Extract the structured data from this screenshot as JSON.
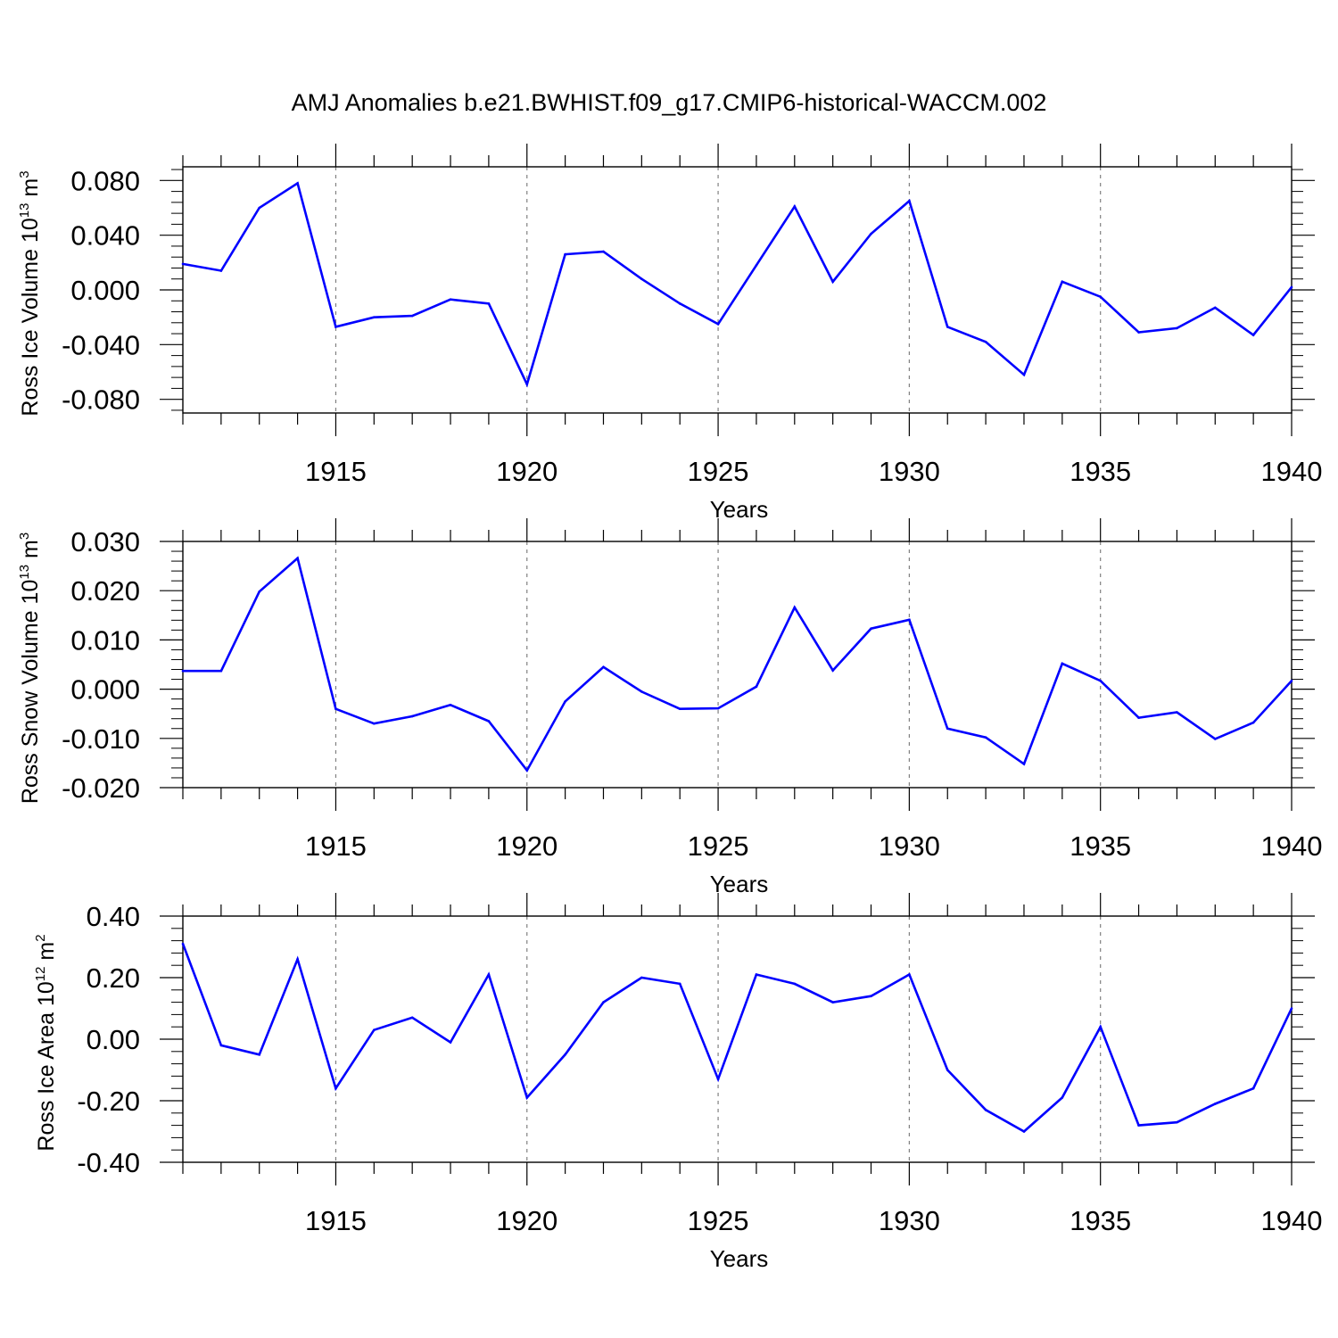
{
  "title": "AMJ Anomalies b.e21.BWHIST.f09_g17.CMIP6-historical-WACCM.002",
  "colors": {
    "line": "#0000ff",
    "axis": "#000000",
    "grid": "#808080"
  },
  "chart_data": [
    {
      "type": "line",
      "ylabel": {
        "text": "Ross Ice Volume 10",
        "exp": "13",
        "unit": " m",
        "unit_exp": "3"
      },
      "xlabel": "Years",
      "xlim": [
        1911,
        1940
      ],
      "ylim": [
        -0.09,
        0.09
      ],
      "grid": "vertical-dashed",
      "x_ticks": [
        1915,
        1920,
        1925,
        1930,
        1935,
        1940
      ],
      "x_tick_labels": [
        "1915",
        "1920",
        "1925",
        "1930",
        "1935",
        "1940"
      ],
      "y_ticks": [
        0.08,
        0.04,
        0.0,
        -0.04,
        -0.08
      ],
      "y_tick_labels": [
        "0.080",
        "0.040",
        "0.000",
        "-0.040",
        "-0.080"
      ],
      "x": [
        1911,
        1912,
        1913,
        1914,
        1915,
        1916,
        1917,
        1918,
        1919,
        1920,
        1921,
        1922,
        1923,
        1924,
        1925,
        1926,
        1927,
        1928,
        1929,
        1930,
        1931,
        1932,
        1933,
        1934,
        1935,
        1936,
        1937,
        1938,
        1939,
        1940
      ],
      "values": [
        0.019,
        0.014,
        0.06,
        0.078,
        -0.027,
        -0.02,
        -0.019,
        -0.007,
        -0.01,
        -0.069,
        0.026,
        0.028,
        0.008,
        -0.01,
        -0.025,
        0.018,
        0.061,
        0.006,
        0.041,
        0.065,
        -0.027,
        -0.038,
        -0.062,
        0.006,
        -0.005,
        -0.031,
        -0.028,
        -0.013,
        -0.033,
        0.002
      ]
    },
    {
      "type": "line",
      "ylabel": {
        "text": "Ross Snow Volume 10",
        "exp": "13",
        "unit": " m",
        "unit_exp": "3"
      },
      "xlabel": "Years",
      "xlim": [
        1911,
        1940
      ],
      "ylim": [
        -0.02,
        0.03
      ],
      "grid": "vertical-dashed",
      "x_ticks": [
        1915,
        1920,
        1925,
        1930,
        1935,
        1940
      ],
      "x_tick_labels": [
        "1915",
        "1920",
        "1925",
        "1930",
        "1935",
        "1940"
      ],
      "y_ticks": [
        0.03,
        0.02,
        0.01,
        0.0,
        -0.01,
        -0.02
      ],
      "y_tick_labels": [
        "0.030",
        "0.020",
        "0.010",
        "0.000",
        "-0.010",
        "-0.020"
      ],
      "x": [
        1911,
        1912,
        1913,
        1914,
        1915,
        1916,
        1917,
        1918,
        1919,
        1920,
        1921,
        1922,
        1923,
        1924,
        1925,
        1926,
        1927,
        1928,
        1929,
        1930,
        1931,
        1932,
        1933,
        1934,
        1935,
        1936,
        1937,
        1938,
        1939,
        1940
      ],
      "values": [
        0.0037,
        0.0037,
        0.0198,
        0.0266,
        -0.004,
        -0.007,
        -0.0055,
        -0.0032,
        -0.0065,
        -0.0165,
        -0.0025,
        0.0045,
        -0.0005,
        -0.004,
        -0.0039,
        0.0005,
        0.0166,
        0.0038,
        0.0123,
        0.0141,
        -0.008,
        -0.0098,
        -0.0152,
        0.0052,
        0.0017,
        -0.0058,
        -0.0047,
        -0.0101,
        -0.0068,
        0.0017
      ]
    },
    {
      "type": "line",
      "ylabel": {
        "text": "Ross Ice Area 10",
        "exp": "12",
        "unit": " m",
        "unit_exp": "2"
      },
      "xlabel": "Years",
      "xlim": [
        1911,
        1940
      ],
      "ylim": [
        -0.4,
        0.4
      ],
      "grid": "vertical-dashed",
      "x_ticks": [
        1915,
        1920,
        1925,
        1930,
        1935,
        1940
      ],
      "x_tick_labels": [
        "1915",
        "1920",
        "1925",
        "1930",
        "1935",
        "1940"
      ],
      "y_ticks": [
        0.4,
        0.2,
        0.0,
        -0.2,
        -0.4
      ],
      "y_tick_labels": [
        "0.40",
        "0.20",
        "0.00",
        "-0.20",
        "-0.40"
      ],
      "x": [
        1911,
        1912,
        1913,
        1914,
        1915,
        1916,
        1917,
        1918,
        1919,
        1920,
        1921,
        1922,
        1923,
        1924,
        1925,
        1926,
        1927,
        1928,
        1929,
        1930,
        1931,
        1932,
        1933,
        1934,
        1935,
        1936,
        1937,
        1938,
        1939,
        1940
      ],
      "values": [
        0.31,
        -0.02,
        -0.05,
        0.26,
        -0.16,
        0.03,
        0.07,
        -0.01,
        0.21,
        -0.19,
        -0.05,
        0.12,
        0.2,
        0.18,
        -0.13,
        0.21,
        0.18,
        0.12,
        0.14,
        0.21,
        -0.1,
        -0.23,
        -0.3,
        -0.19,
        0.04,
        -0.28,
        -0.27,
        -0.21,
        -0.16,
        0.1
      ]
    }
  ]
}
